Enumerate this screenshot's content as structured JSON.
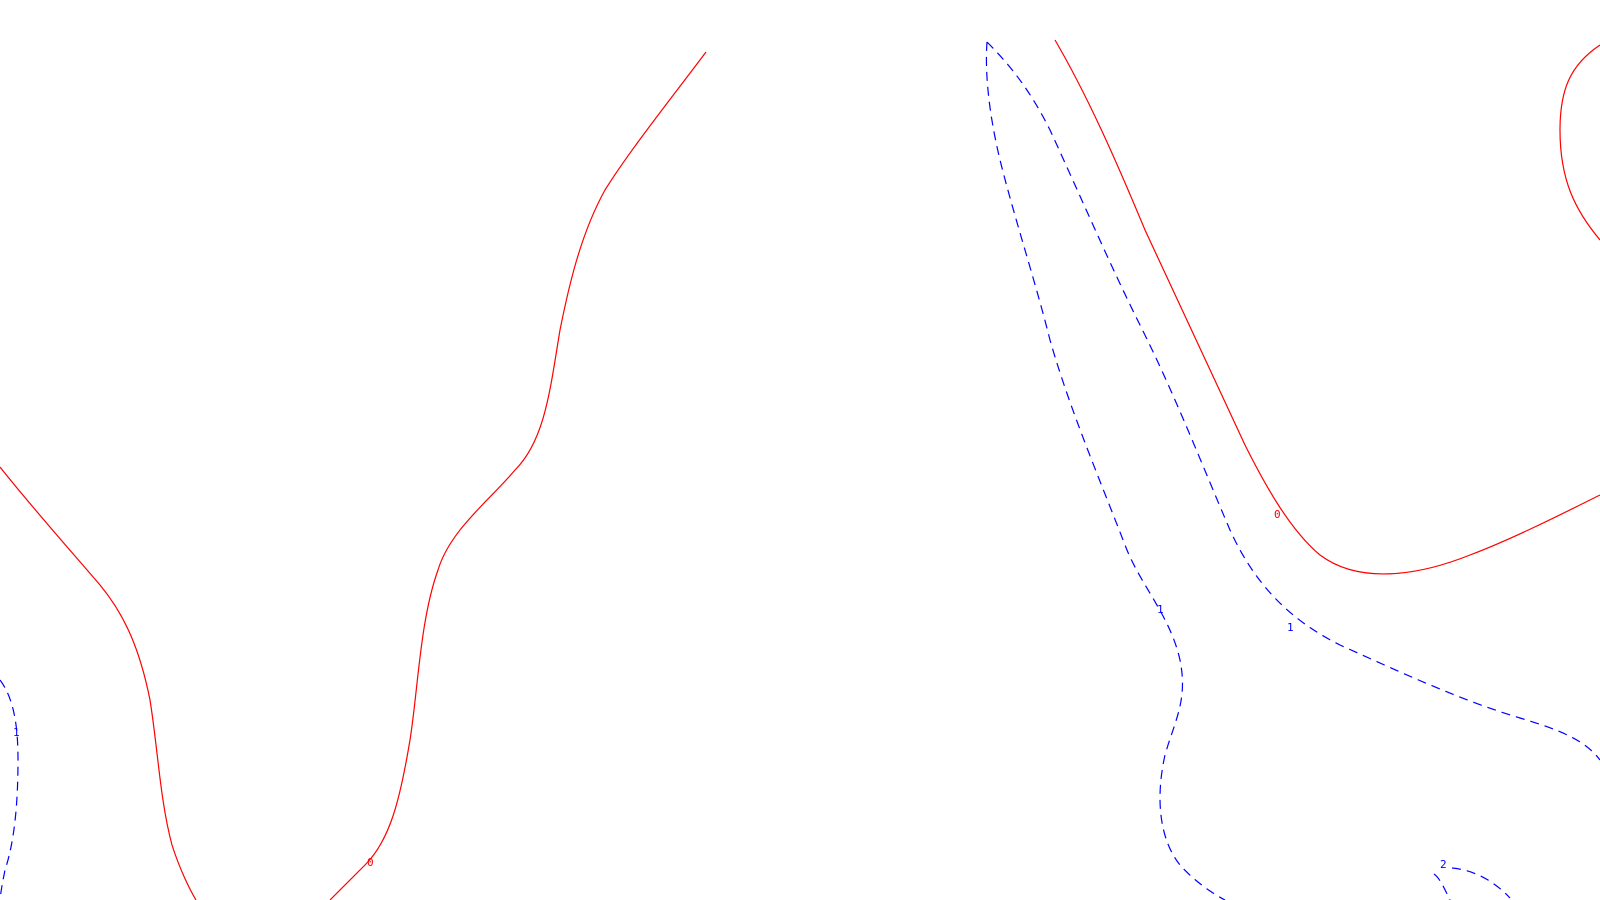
{
  "contours": [
    {
      "id": "c0a",
      "level": "0",
      "style": "solid",
      "color": "#ff0000"
    },
    {
      "id": "c0b",
      "level": "0",
      "style": "solid",
      "color": "#ff0000"
    },
    {
      "id": "c0c",
      "level": "0",
      "style": "solid",
      "color": "#ff0000"
    },
    {
      "id": "c0d",
      "level": "0",
      "style": "solid",
      "color": "#ff0000"
    },
    {
      "id": "c1a",
      "level": "1",
      "style": "dashed",
      "color": "#0000ff"
    },
    {
      "id": "c1b",
      "level": "1",
      "style": "dashed",
      "color": "#0000ff"
    },
    {
      "id": "c1c",
      "level": "1",
      "style": "dashed",
      "color": "#0000ff"
    },
    {
      "id": "c2a",
      "level": "2",
      "style": "dashed",
      "color": "#0000ff"
    }
  ],
  "labels": {
    "l0a": "0",
    "l0b": "0",
    "l1a": "1",
    "l1b": "1",
    "l1c": "1",
    "l2a": "2"
  },
  "colors": {
    "level_0": "#ff0000",
    "positive_levels": "#0000ff",
    "background": "#ffffff"
  }
}
